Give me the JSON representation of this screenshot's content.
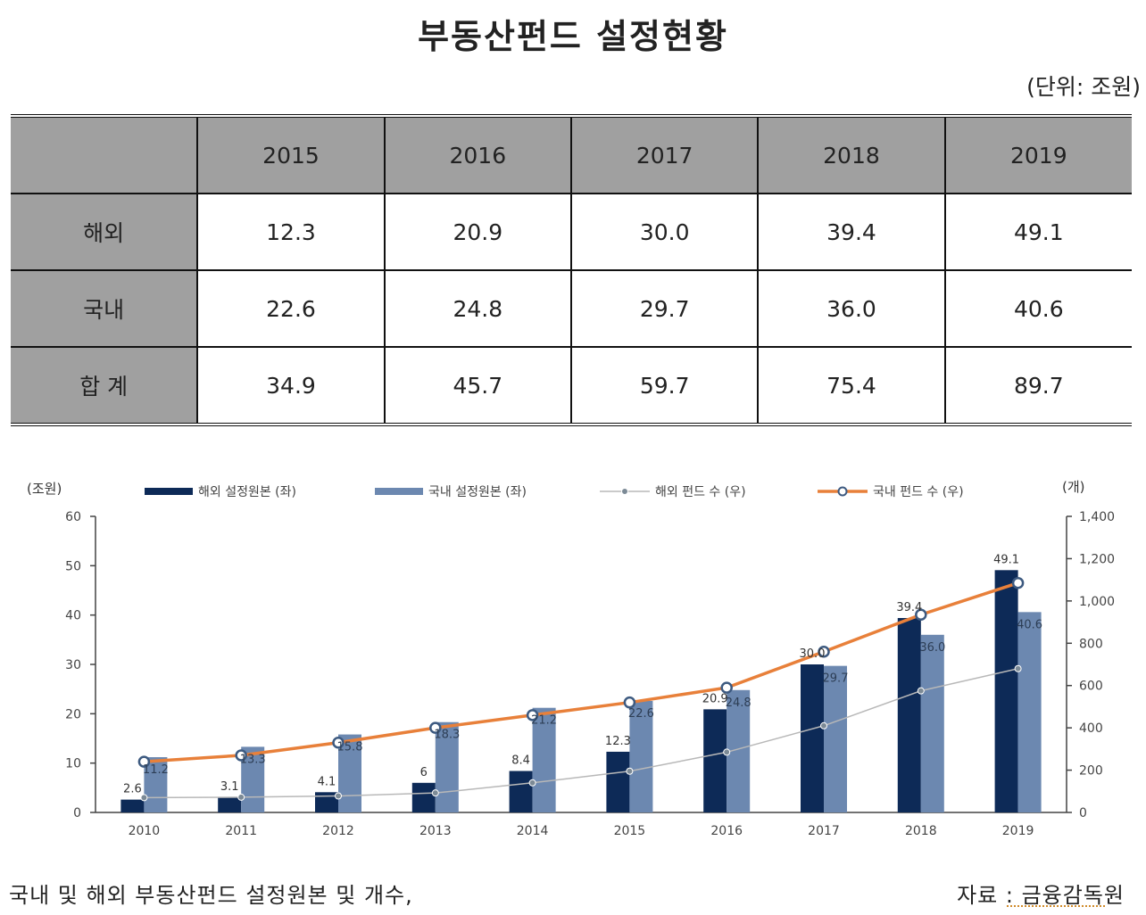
{
  "title": "부동산펀드 설정현황",
  "unit": "(단위: 조원)",
  "table": {
    "header": [
      "",
      "2015",
      "2016",
      "2017",
      "2018",
      "2019"
    ],
    "rows": [
      {
        "label": "해외",
        "values": [
          "12.3",
          "20.9",
          "30.0",
          "39.4",
          "49.1"
        ]
      },
      {
        "label": "국내",
        "values": [
          "22.6",
          "24.8",
          "29.7",
          "36.0",
          "40.6"
        ]
      },
      {
        "label": "합 계",
        "values": [
          "34.9",
          "45.7",
          "59.7",
          "75.4",
          "89.7"
        ]
      }
    ]
  },
  "chart_data": {
    "type": "bar",
    "categories": [
      "2010",
      "2011",
      "2012",
      "2013",
      "2014",
      "2015",
      "2016",
      "2017",
      "2018",
      "2019"
    ],
    "y_left_label": "(조원)",
    "y_right_label": "(개)",
    "ylim_left": [
      0,
      60
    ],
    "ylim_right": [
      0,
      1400
    ],
    "y_left_ticks": [
      "0",
      "10",
      "20",
      "30",
      "40",
      "50",
      "60"
    ],
    "y_right_ticks": [
      "0",
      "200",
      "400",
      "600",
      "800",
      "1,000",
      "1,200",
      "1,400"
    ],
    "grid": false,
    "legend_position": "top",
    "series": [
      {
        "name": "해외 설정원본 (좌)",
        "kind": "bar",
        "axis": "left",
        "color": "#0d2a57",
        "values": [
          2.6,
          3.1,
          4.1,
          6,
          8.4,
          12.3,
          20.9,
          30.0,
          39.4,
          49.1
        ],
        "labels": [
          "2.6",
          "3.1",
          "4.1",
          "6",
          "8.4",
          "12.3",
          "20.9",
          "30.0",
          "39.4",
          "49.1"
        ]
      },
      {
        "name": "국내 설정원본 (좌)",
        "kind": "bar",
        "axis": "left",
        "color": "#6c88b0",
        "values": [
          11.2,
          13.3,
          15.8,
          18.3,
          21.2,
          22.6,
          24.8,
          29.7,
          36.0,
          40.6
        ],
        "labels": [
          "11.2",
          "13.3",
          "15.8",
          "18.3",
          "21.2",
          "22.6",
          "24.8",
          "29.7",
          "36.0",
          "40.6"
        ]
      },
      {
        "name": "해외 펀드 수 (우)",
        "kind": "line",
        "axis": "right",
        "color": "#b8b8b8",
        "values": [
          70,
          72,
          78,
          92,
          140,
          195,
          285,
          410,
          575,
          680
        ]
      },
      {
        "name": "국내 펀드 수 (우)",
        "kind": "line",
        "axis": "right",
        "color": "#e8803a",
        "values": [
          240,
          270,
          330,
          400,
          460,
          520,
          590,
          760,
          935,
          1085
        ]
      }
    ]
  },
  "caption_left": "국내 및 해외 부동산펀드 설정원본 및 개수,",
  "caption_right": "자료 : 금융감독원"
}
